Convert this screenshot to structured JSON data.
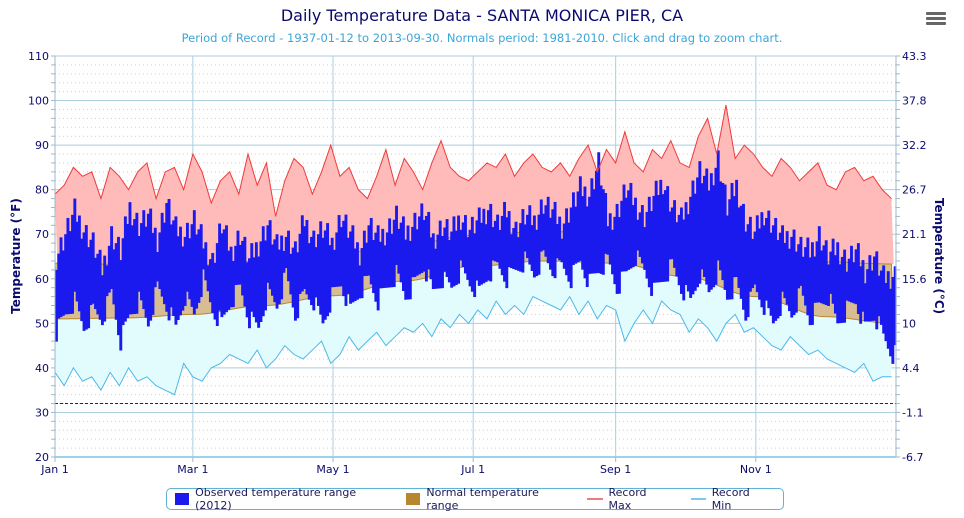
{
  "header": {
    "title": "Daily Temperature Data - SANTA MONICA PIER, CA",
    "subtitle": "Period of Record - 1937-01-12 to 2013-09-30. Normals period: 1981-2010. Click and drag to zoom chart.",
    "menu_icon": "hamburger-menu-icon"
  },
  "chart_data": {
    "type": "area+bar",
    "title": "Daily Temperature Data - SANTA MONICA PIER, CA",
    "ylabel": "Temperature (°F)",
    "ylabel_right": "Temperature (°C)",
    "ylim": [
      20,
      110
    ],
    "yticks": [
      "110",
      "100",
      "90",
      "80",
      "70",
      "60",
      "50",
      "40",
      "30",
      "20"
    ],
    "yticks_right": [
      "43.3",
      "37.8",
      "32.2",
      "26.7",
      "21.1",
      "15.6",
      "10",
      "4.4",
      "-1.1",
      "-6.7"
    ],
    "xticks": [
      {
        "label": "Jan 1",
        "day": 0
      },
      {
        "label": "Mar 1",
        "day": 60
      },
      {
        "label": "May 1",
        "day": 121
      },
      {
        "label": "Jul 1",
        "day": 182
      },
      {
        "label": "Sep 1",
        "day": 244
      },
      {
        "label": "Nov 1",
        "day": 305
      }
    ],
    "days_in_year": 366,
    "freezing_line_f": 32,
    "sample_step_days": 4,
    "legend_position": "bottom",
    "colors": {
      "observed": "#1a1aee",
      "normal": "#b8862e",
      "normal_fill": "#d9bd92",
      "record_max": "#f03a3a",
      "record_max_fill": "#ffbaba",
      "record_min": "#4cb8ea",
      "record_min_fill": "#e2fcfd",
      "freezing": "#1a1aaa",
      "grid": "#a9cfe0"
    },
    "legend": [
      {
        "name": "Observed temperature range (2012)",
        "kind": "box",
        "color": "#1a1aee"
      },
      {
        "name": "Normal temperature range",
        "kind": "box",
        "color": "#b8862e"
      },
      {
        "name": "Record Max",
        "kind": "line",
        "color": "#f07a7a"
      },
      {
        "name": "Record Min",
        "kind": "line",
        "color": "#7ec8ee"
      }
    ],
    "normals": {
      "days": [
        0,
        30,
        60,
        91,
        121,
        152,
        182,
        213,
        244,
        274,
        305,
        335,
        365
      ],
      "high": [
        63.5,
        63.2,
        63.0,
        64.0,
        65.5,
        67.5,
        69.8,
        70.6,
        70.3,
        68.8,
        66.0,
        63.8,
        63.3
      ],
      "low": [
        51.0,
        51.2,
        52.0,
        54.0,
        56.2,
        59.5,
        62.8,
        64.0,
        63.5,
        60.5,
        56.0,
        51.5,
        50.0
      ]
    },
    "series": [
      {
        "name": "Record Max",
        "values": [
          79,
          81,
          85,
          83,
          84,
          78,
          85,
          83,
          80,
          84,
          86,
          78,
          84,
          85,
          80,
          88,
          84,
          77,
          82,
          84,
          79,
          88,
          81,
          86,
          74,
          82,
          87,
          85,
          79,
          84,
          90,
          83,
          85,
          80,
          78,
          83,
          89,
          81,
          87,
          84,
          80,
          86,
          91,
          85,
          83,
          82,
          84,
          86,
          85,
          88,
          83,
          86,
          88,
          85,
          84,
          86,
          83,
          87,
          90,
          84,
          89,
          86,
          93,
          86,
          84,
          89,
          87,
          91,
          86,
          85,
          92,
          96,
          88,
          99,
          87,
          90,
          88,
          85,
          83,
          87,
          85,
          82,
          84,
          86,
          81,
          80,
          84,
          85,
          82,
          83,
          80,
          78
        ]
      },
      {
        "name": "Record Min",
        "values": [
          39,
          36,
          40,
          37,
          38,
          35,
          39,
          36,
          40,
          37,
          38,
          36,
          35,
          34,
          41,
          38,
          37,
          40,
          41,
          43,
          42,
          41,
          44,
          40,
          42,
          45,
          43,
          42,
          44,
          46,
          41,
          43,
          47,
          44,
          46,
          48,
          45,
          47,
          49,
          48,
          50,
          47,
          51,
          49,
          52,
          50,
          53,
          51,
          55,
          52,
          54,
          52,
          56,
          55,
          54,
          53,
          56,
          52,
          55,
          51,
          54,
          53,
          46,
          50,
          53,
          50,
          55,
          53,
          52,
          48,
          51,
          49,
          46,
          50,
          52,
          48,
          49,
          47,
          45,
          44,
          47,
          45,
          43,
          44,
          42,
          41,
          40,
          39,
          41,
          37,
          38,
          38
        ]
      },
      {
        "name": "Observed Low",
        "values": [
          48,
          52,
          55,
          49,
          53,
          51,
          57,
          46,
          52,
          55,
          50,
          58,
          54,
          49,
          56,
          52,
          60,
          53,
          50,
          55,
          58,
          51,
          49,
          57,
          54,
          61,
          52,
          57,
          55,
          50,
          56,
          59,
          53,
          57,
          60,
          55,
          58,
          61,
          56,
          59,
          63,
          57,
          60,
          58,
          62,
          59,
          57,
          61,
          63,
          60,
          62,
          64,
          61,
          65,
          62,
          63,
          60,
          64,
          59,
          62,
          64,
          58,
          61,
          65,
          62,
          57,
          60,
          63,
          58,
          55,
          61,
          57,
          62,
          56,
          59,
          52,
          58,
          54,
          50,
          55,
          52,
          57,
          51,
          54,
          56,
          50,
          53,
          55,
          49,
          52,
          47,
          43
        ]
      },
      {
        "name": "Observed High",
        "values": [
          65,
          70,
          75,
          71,
          68,
          62,
          70,
          66,
          76,
          72,
          74,
          69,
          77,
          71,
          70,
          73,
          68,
          64,
          72,
          66,
          70,
          64,
          68,
          72,
          67,
          70,
          66,
          73,
          69,
          71,
          68,
          74,
          70,
          66,
          72,
          69,
          71,
          74,
          70,
          73,
          75,
          69,
          72,
          70,
          74,
          71,
          73,
          76,
          72,
          75,
          71,
          74,
          73,
          77,
          75,
          72,
          76,
          80,
          79,
          86,
          73,
          75,
          80,
          77,
          74,
          78,
          82,
          76,
          73,
          79,
          84,
          81,
          87,
          76,
          81,
          73,
          70,
          75,
          72,
          69,
          70,
          67,
          66,
          70,
          65,
          67,
          64,
          66,
          62,
          65,
          60,
          61
        ]
      }
    ]
  }
}
